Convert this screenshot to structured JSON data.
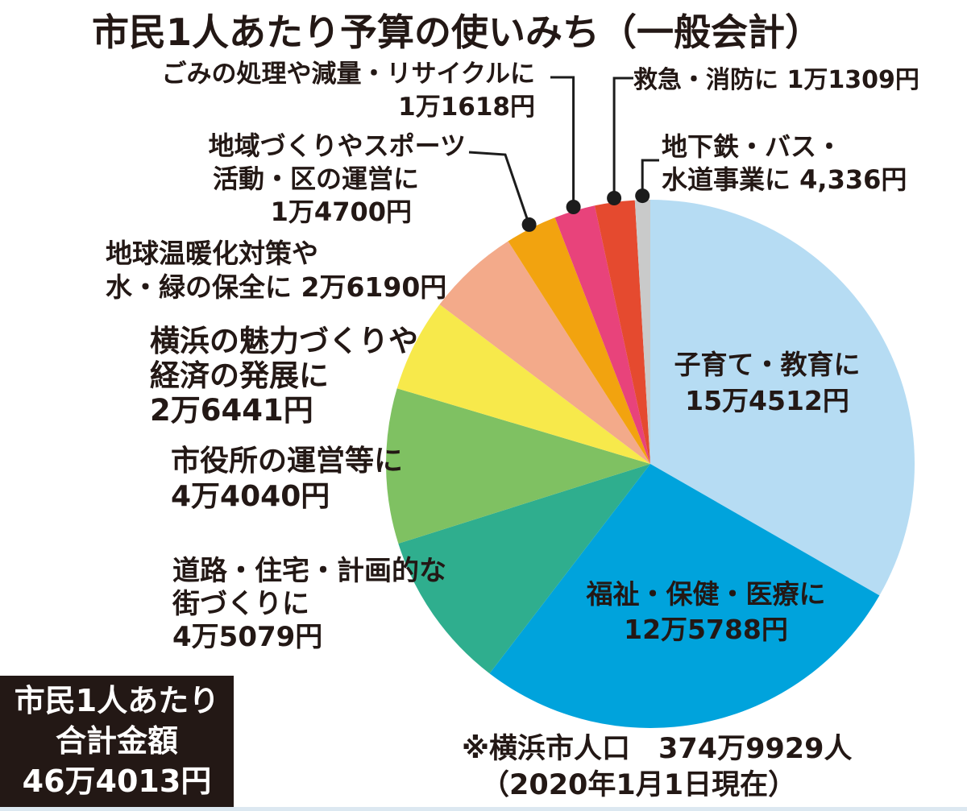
{
  "title": "市民1人あたり予算の使いみち（一般会計）",
  "total_box": {
    "lines": [
      "市民1人あたり",
      "合計金額",
      "46万4013円"
    ]
  },
  "note": {
    "lines": [
      "※横浜市人口　374万9929人",
      "（2020年1月1日現在）"
    ]
  },
  "colors": {
    "text": "#231815",
    "callout": "#1c1c1c",
    "total_box_bg": "#231815",
    "total_box_text": "#ffffff",
    "bottom_strip": "#dce8f1"
  },
  "chart_data": {
    "type": "pie",
    "title": "市民1人あたり予算の使いみち（一般会計）",
    "unit": "円（市民1人あたり）",
    "total_value": 464013,
    "total_label": "46万4013円",
    "start_angle_deg": 0,
    "direction": "clockwise",
    "legend_position": "labels-around-pie",
    "series": [
      {
        "key": "childcare-education",
        "label": "子育て・教育に",
        "value": 154512,
        "value_label": "15万4512円",
        "color": "#b6dcf3",
        "label_placement": "inside",
        "display_lines": [
          "子育て・教育に",
          "15万4512円"
        ]
      },
      {
        "key": "welfare-health-medical",
        "label": "福祉・保健・医療に",
        "value": 125788,
        "value_label": "12万5788円",
        "color": "#00a3dc",
        "label_placement": "inside",
        "display_lines": [
          "福祉・保健・医療に",
          "12万5788円"
        ]
      },
      {
        "key": "roads-housing-planning",
        "label": "道路・住宅・計画的な街づくりに",
        "value": 45079,
        "value_label": "4万5079円",
        "color": "#2fae8e",
        "label_placement": "outside",
        "display_lines": [
          "道路・住宅・計画的な",
          "街づくりに",
          "4万5079円"
        ]
      },
      {
        "key": "city-hall-operations",
        "label": "市役所の運営等に",
        "value": 44040,
        "value_label": "4万4040円",
        "color": "#7fc162",
        "label_placement": "outside",
        "display_lines": [
          "市役所の運営等に",
          "4万4040円"
        ]
      },
      {
        "key": "attractiveness-economy",
        "label": "横浜の魅力づくりや経済の発展に",
        "value": 26441,
        "value_label": "2万6441円",
        "color": "#f7e94b",
        "label_placement": "outside",
        "display_lines": [
          "横浜の魅力づくりや",
          "経済の発展に",
          "2万6441円"
        ]
      },
      {
        "key": "climate-water-green",
        "label": "地球温暖化対策や水・緑の保全に",
        "value": 26190,
        "value_label": "2万6190円",
        "color": "#f3aa8a",
        "label_placement": "outside",
        "display_lines": [
          "地球温暖化対策や",
          "水・緑の保全に 2万6190円"
        ]
      },
      {
        "key": "community-sports-ward",
        "label": "地域づくりやスポーツ活動・区の運営に",
        "value": 14700,
        "value_label": "1万4700円",
        "color": "#f2a30f",
        "label_placement": "outside-callout",
        "display_lines": [
          "地域づくりやスポーツ",
          "活動・区の運営に",
          "1万4700円"
        ]
      },
      {
        "key": "garbage-recycling",
        "label": "ごみの処理や減量・リサイクルに",
        "value": 11618,
        "value_label": "1万1618円",
        "color": "#e8437b",
        "label_placement": "outside-callout",
        "display_lines": [
          "ごみの処理や減量・リサイクルに",
          "1万1618円"
        ]
      },
      {
        "key": "emergency-fire",
        "label": "救急・消防に",
        "value": 11309,
        "value_label": "1万1309円",
        "color": "#e54a2f",
        "label_placement": "outside-callout",
        "display_lines": [
          "救急・消防に 1万1309円"
        ]
      },
      {
        "key": "subway-bus-water",
        "label": "地下鉄・バス・水道事業に",
        "value": 4336,
        "value_label": "4,336円",
        "color": "#c9caca",
        "label_placement": "outside-callout",
        "display_lines": [
          "地下鉄・バス・",
          "水道事業に 4,336円"
        ]
      }
    ]
  }
}
